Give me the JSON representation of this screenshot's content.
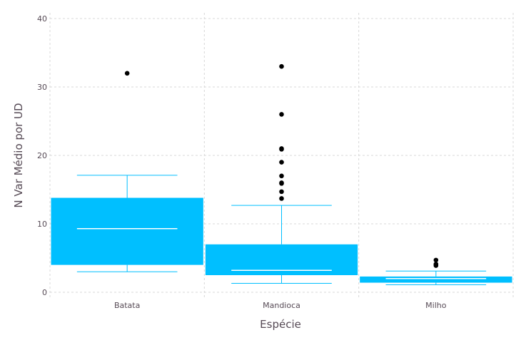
{
  "chart_data": {
    "type": "box",
    "xlabel": "Espécie",
    "ylabel": "N Var Médio por UD",
    "ylim": [
      0,
      40
    ],
    "y_ticks": [
      0,
      10,
      20,
      30,
      40
    ],
    "grid": true,
    "legend": "none",
    "categories": [
      "Batata",
      "Mandioca",
      "Milho"
    ],
    "boxes": [
      {
        "category": "Batata",
        "lower_whisker": 3.0,
        "q1": 4.0,
        "median": 9.3,
        "q3": 13.8,
        "upper_whisker": 17.1,
        "outliers": [
          32.0
        ]
      },
      {
        "category": "Mandioca",
        "lower_whisker": 1.3,
        "q1": 2.5,
        "median": 3.2,
        "q3": 7.0,
        "upper_whisker": 12.7,
        "outliers": [
          13.7,
          14.7,
          15.9,
          16.0,
          17.0,
          19.0,
          20.9,
          21.0,
          26.0,
          33.0
        ]
      },
      {
        "category": "Milho",
        "lower_whisker": 1.1,
        "q1": 1.4,
        "median": 2.0,
        "q3": 2.3,
        "upper_whisker": 3.1,
        "outliers": [
          3.9,
          4.1,
          4.7
        ]
      }
    ],
    "colors": {
      "box_fill": "#00bfff",
      "line": "#00bfff",
      "median": "#ffffff",
      "outlier": "#000000",
      "grid": "#d8d8d8"
    }
  }
}
